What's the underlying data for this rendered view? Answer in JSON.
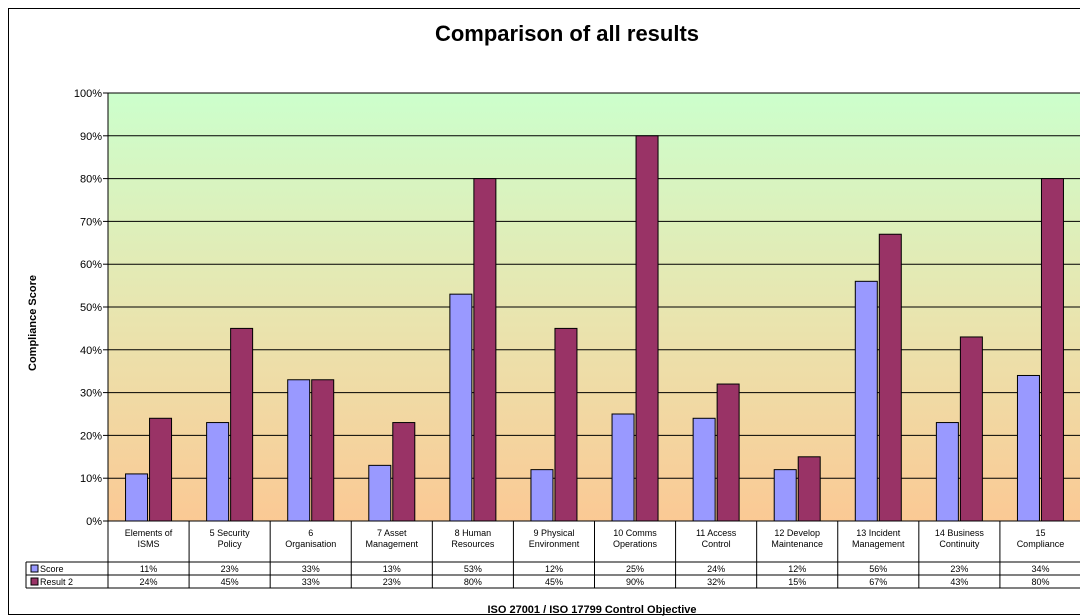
{
  "chart_data": {
    "type": "bar",
    "title": "Comparison of all results",
    "xlabel": "ISO 27001 / ISO 17799 Control Objective",
    "ylabel": "Compliance Score",
    "ylim": [
      0,
      100
    ],
    "yticks": [
      "0%",
      "10%",
      "20%",
      "30%",
      "40%",
      "50%",
      "60%",
      "70%",
      "80%",
      "90%",
      "100%"
    ],
    "grid": true,
    "legend": "data-table",
    "categories": [
      [
        "Elements of",
        "ISMS"
      ],
      [
        "5 Security",
        "Policy"
      ],
      [
        "6",
        "Organisation"
      ],
      [
        "7 Asset",
        "Management"
      ],
      [
        "8 Human",
        "Resources"
      ],
      [
        "9 Physical",
        "Environment"
      ],
      [
        "10 Comms",
        "Operations"
      ],
      [
        "11 Access",
        "Control"
      ],
      [
        "12 Develop",
        "Maintenance"
      ],
      [
        "13 Incident",
        "Management"
      ],
      [
        "14 Business",
        "Continuity"
      ],
      [
        "15",
        "Compliance"
      ]
    ],
    "series": [
      {
        "name": "Score",
        "color": "#9999ff",
        "values": [
          11,
          23,
          33,
          13,
          53,
          12,
          25,
          24,
          12,
          56,
          23,
          34
        ],
        "labels": [
          "11%",
          "23%",
          "33%",
          "13%",
          "53%",
          "12%",
          "25%",
          "24%",
          "12%",
          "56%",
          "23%",
          "34%"
        ]
      },
      {
        "name": "Result 2",
        "color": "#993366",
        "values": [
          24,
          45,
          33,
          23,
          80,
          45,
          90,
          32,
          15,
          67,
          43,
          80
        ],
        "labels": [
          "24%",
          "45%",
          "33%",
          "23%",
          "80%",
          "45%",
          "90%",
          "32%",
          "15%",
          "67%",
          "43%",
          "80%"
        ]
      }
    ]
  }
}
